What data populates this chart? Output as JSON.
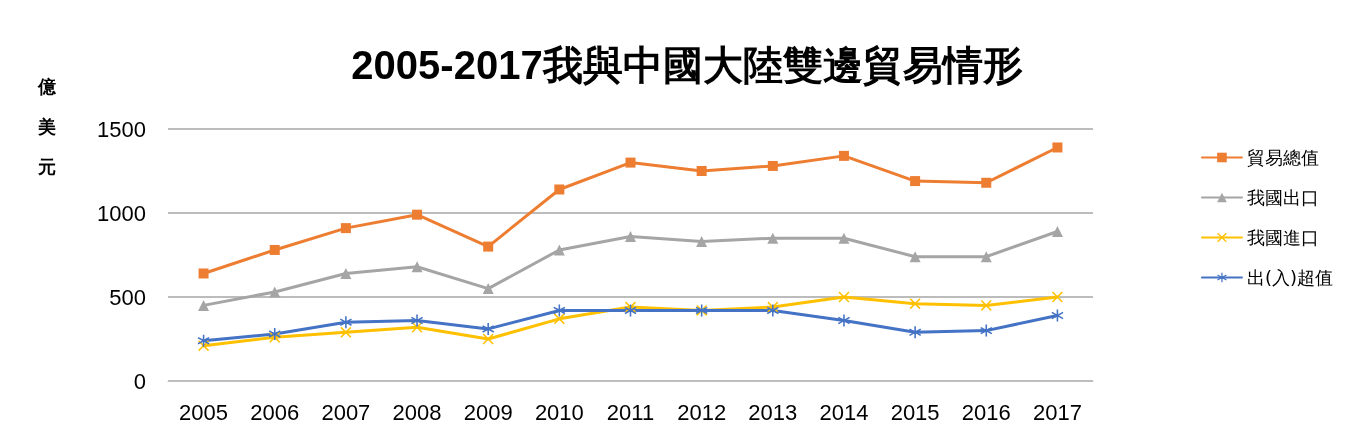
{
  "chart_data": {
    "type": "line",
    "title": "2005-2017我與中國大陸雙邊貿易情形",
    "ylabel": "億美元",
    "categories": [
      "2005",
      "2006",
      "2007",
      "2008",
      "2009",
      "2010",
      "2011",
      "2012",
      "2013",
      "2014",
      "2015",
      "2016",
      "2017"
    ],
    "series": [
      {
        "name": "貿易總值",
        "color": "#ed7d31",
        "marker": "square",
        "values": [
          640,
          780,
          910,
          990,
          800,
          1140,
          1300,
          1250,
          1280,
          1340,
          1190,
          1180,
          1390
        ]
      },
      {
        "name": "我國出口",
        "color": "#a5a5a5",
        "marker": "triangle",
        "values": [
          450,
          530,
          640,
          680,
          550,
          780,
          860,
          830,
          850,
          850,
          740,
          740,
          890
        ]
      },
      {
        "name": "我國進口",
        "color": "#ffc000",
        "marker": "cross",
        "values": [
          210,
          260,
          290,
          320,
          250,
          370,
          440,
          420,
          440,
          500,
          460,
          450,
          500
        ]
      },
      {
        "name": "出(入)超值",
        "color": "#4472c4",
        "marker": "star",
        "values": [
          240,
          280,
          350,
          360,
          310,
          420,
          420,
          420,
          420,
          360,
          290,
          300,
          390
        ]
      }
    ],
    "ylim": [
      0,
      1500
    ],
    "yticks": [
      0,
      500,
      1000,
      1500
    ],
    "grid": "y",
    "legend": "right",
    "line_style": "solid"
  }
}
